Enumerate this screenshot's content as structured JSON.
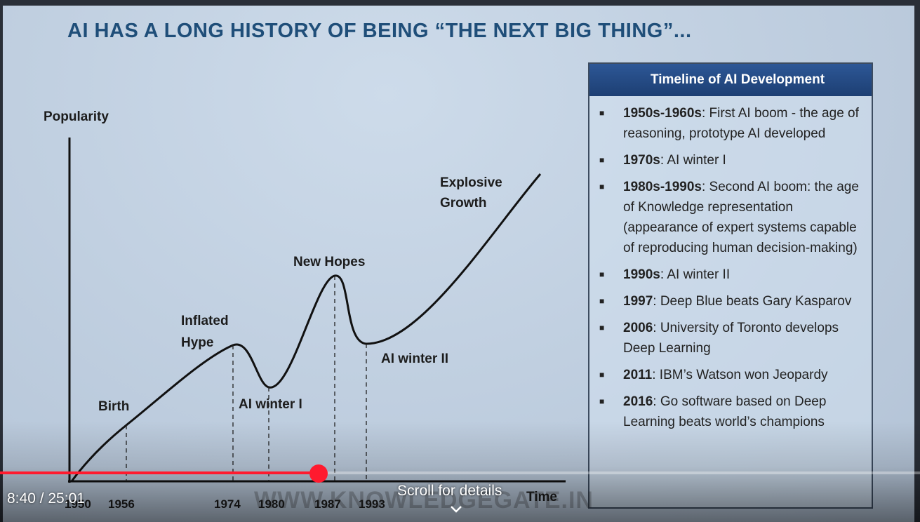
{
  "slide": {
    "title": "AI HAS A LONG HISTORY OF BEING “THE NEXT BIG THING”...",
    "watermark": "WWW.KNOWLEDGEGATE.IN"
  },
  "chart_data": {
    "type": "line",
    "ylabel": "Popularity",
    "xlabel": "Time",
    "x_ticks": [
      "1950",
      "1956",
      "1974",
      "1980",
      "1987",
      "1993"
    ],
    "markers": [
      {
        "year": "1956",
        "label": "Birth"
      },
      {
        "year": "1974",
        "label": "Inflated Hype"
      },
      {
        "year": "1980",
        "label": "AI winter I"
      },
      {
        "year": "1987",
        "label": "New Hopes"
      },
      {
        "year": "1993",
        "label": "AI winter II"
      }
    ],
    "end_annotation": "Explosive Growth",
    "grid": false,
    "legend": "none"
  },
  "labels": {
    "inflated_1": "Inflated",
    "inflated_2": "Hype",
    "explosive_1": "Explosive",
    "explosive_2": "Growth"
  },
  "timeline": {
    "header": "Timeline of AI Development",
    "items": [
      {
        "year": "1950s-1960s",
        "text": ": First AI boom - the age of reasoning, prototype AI developed"
      },
      {
        "year": "1970s",
        "text": ": AI winter I"
      },
      {
        "year": "1980s-1990s",
        "text": ": Second AI boom: the age of Knowledge representation (appearance of expert systems capable of reproducing human decision-making)"
      },
      {
        "year": "1990s",
        "text": ": AI winter II"
      },
      {
        "year": "1997",
        "text": ": Deep Blue beats Gary Kasparov"
      },
      {
        "year": "2006",
        "text": ": University of Toronto develops Deep Learning"
      },
      {
        "year": "2011",
        "text": ": IBM’s Watson won Jeopardy"
      },
      {
        "year": "2016",
        "text": ": Go software based on Deep Learning beats world’s champions"
      }
    ],
    "bullet": "■"
  },
  "player": {
    "current_time": "8:40",
    "duration": "25:01",
    "time_display": "8:40 / 25:01",
    "progress_fraction": 0.346,
    "buffered_fraction": 0.354,
    "scroll_hint": "Scroll for details",
    "accent_color": "#ff1a2e"
  }
}
